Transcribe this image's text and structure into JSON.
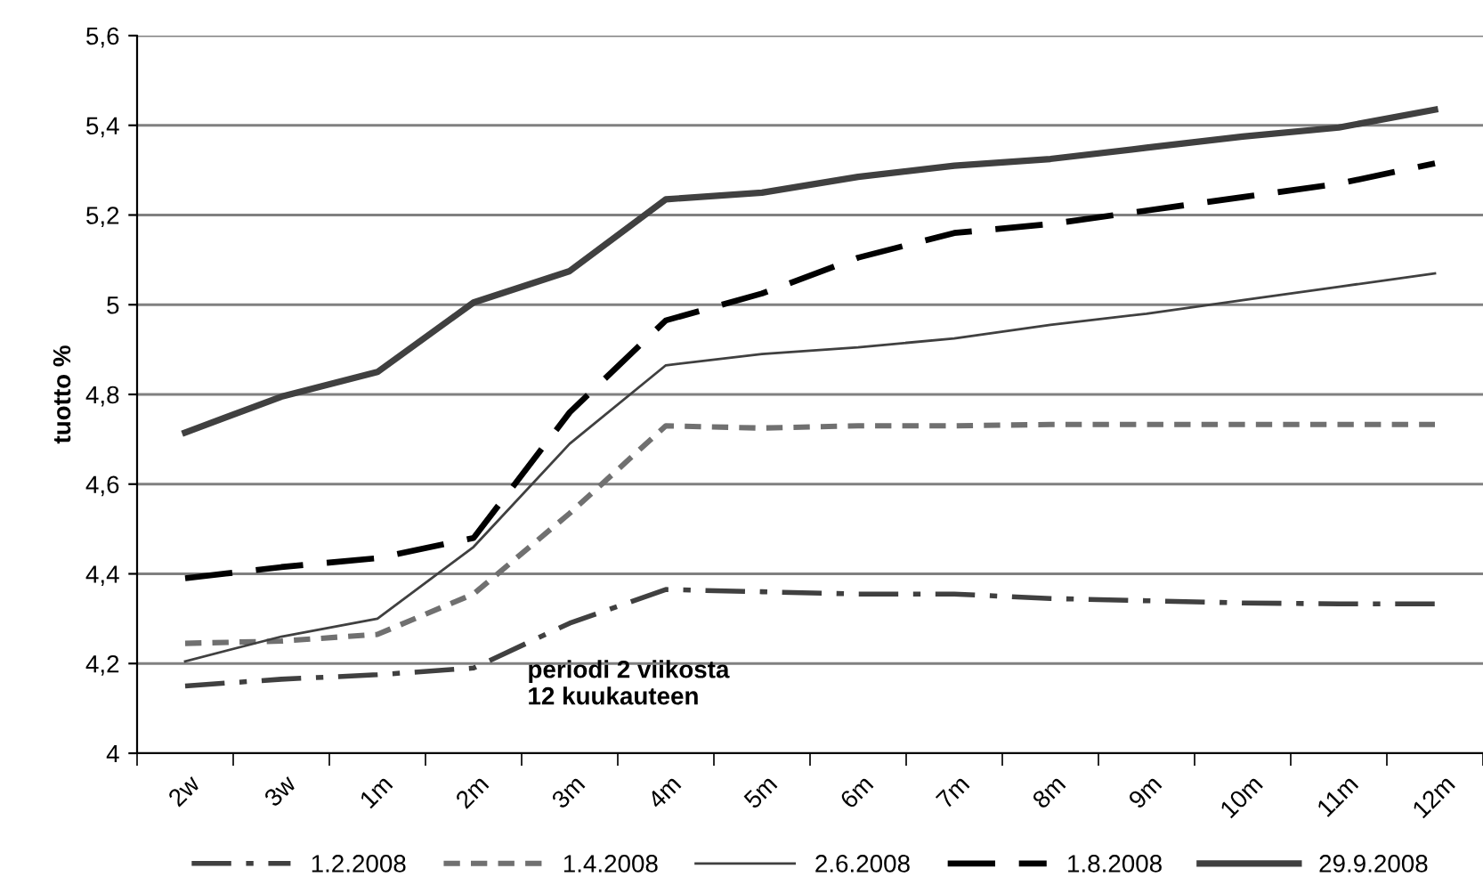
{
  "chart_data": {
    "type": "line",
    "ylabel": "tuotto %",
    "categories": [
      "2w",
      "3w",
      "1m",
      "2m",
      "3m",
      "4m",
      "5m",
      "6m",
      "7m",
      "8m",
      "9m",
      "10m",
      "11m",
      "12m"
    ],
    "series": [
      {
        "name": "1.2.2008",
        "color": "#404040",
        "line_style": "dashdot",
        "values": [
          4.15,
          4.165,
          4.175,
          4.19,
          4.29,
          4.365,
          4.36,
          4.355,
          4.355,
          4.345,
          4.34,
          4.335,
          4.333,
          4.333
        ]
      },
      {
        "name": "1.4.2008",
        "color": "#707070",
        "line_style": "dotted",
        "values": [
          4.245,
          4.25,
          4.265,
          4.355,
          4.535,
          4.73,
          4.725,
          4.73,
          4.73,
          4.733,
          4.733,
          4.733,
          4.733,
          4.733
        ]
      },
      {
        "name": "2.6.2008",
        "color": "#404040",
        "line_style": "solid",
        "values": [
          4.205,
          4.26,
          4.3,
          4.46,
          4.69,
          4.865,
          4.89,
          4.905,
          4.925,
          4.955,
          4.98,
          5.01,
          5.04,
          5.07
        ]
      },
      {
        "name": "1.8.2008",
        "color": "#000000",
        "line_style": "dashed",
        "values": [
          4.39,
          4.415,
          4.435,
          4.48,
          4.76,
          4.965,
          5.025,
          5.105,
          5.16,
          5.18,
          5.21,
          5.24,
          5.27,
          5.315
        ]
      },
      {
        "name": "29.9.2008",
        "color": "#404040",
        "line_style": "solid",
        "values": [
          4.715,
          4.795,
          4.85,
          5.005,
          5.075,
          5.235,
          5.25,
          5.285,
          5.31,
          5.325,
          5.35,
          5.375,
          5.395,
          5.435
        ]
      }
    ],
    "ylim": [
      4,
      5.6
    ],
    "yticks": [
      4,
      {
        "value": 4.2,
        "label": "4,2"
      },
      {
        "value": 4.4,
        "label": "4,4"
      },
      {
        "value": 4.6,
        "label": "4,6"
      },
      {
        "value": 4.8,
        "label": "4,8"
      },
      5,
      {
        "value": 5.2,
        "label": "5,2"
      },
      {
        "value": 5.4,
        "label": "5,4"
      },
      {
        "value": 5.6,
        "label": "5,6"
      }
    ],
    "grid": "y",
    "legend": "bottom",
    "marker": "none",
    "annotations": [
      "periodi 2 viikosta\n12 kuukauteen"
    ]
  }
}
